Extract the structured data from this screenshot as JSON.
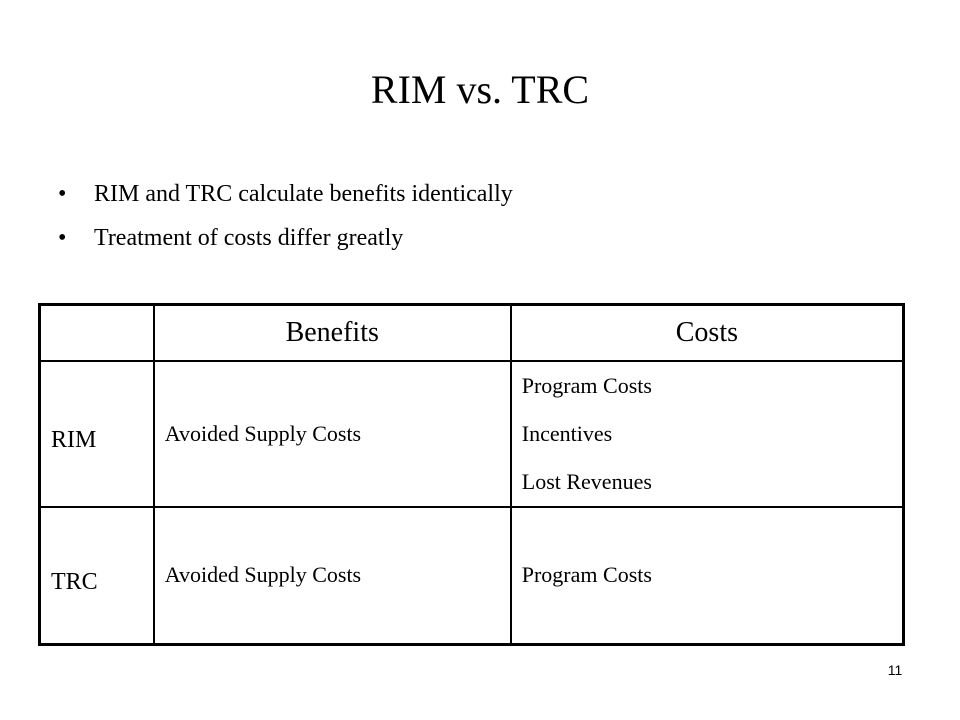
{
  "slide": {
    "title": "RIM vs. TRC",
    "page_number": "11"
  },
  "bullets": [
    {
      "symbol": "•",
      "text": "RIM and TRC calculate benefits identically"
    },
    {
      "symbol": "•",
      "text": "Treatment of costs differ greatly"
    }
  ],
  "table": {
    "headers": [
      "",
      "Benefits",
      "Costs"
    ],
    "rows": [
      {
        "label": "RIM",
        "benefits": "Avoided Supply Costs",
        "costs": [
          "Program Costs",
          "Incentives",
          "Lost Revenues"
        ]
      },
      {
        "label": "TRC",
        "benefits": "Avoided Supply Costs",
        "costs": [
          "Program Costs"
        ]
      }
    ]
  }
}
